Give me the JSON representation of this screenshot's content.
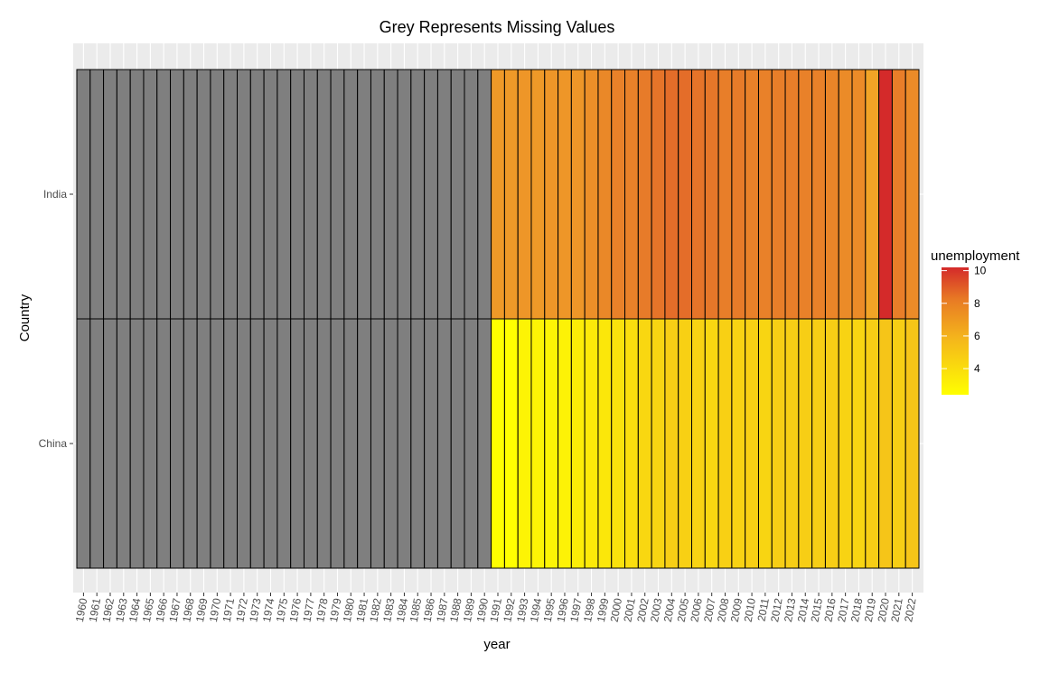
{
  "chart_data": {
    "type": "heatmap",
    "title": "Grey Represents Missing Values",
    "xlabel": "year",
    "ylabel": "Country",
    "years": [
      "1960",
      "1961",
      "1962",
      "1963",
      "1964",
      "1965",
      "1966",
      "1967",
      "1968",
      "1969",
      "1970",
      "1971",
      "1972",
      "1973",
      "1974",
      "1975",
      "1976",
      "1977",
      "1978",
      "1979",
      "1980",
      "1981",
      "1982",
      "1983",
      "1984",
      "1985",
      "1986",
      "1987",
      "1988",
      "1989",
      "1990",
      "1991",
      "1992",
      "1993",
      "1994",
      "1995",
      "1996",
      "1997",
      "1998",
      "1999",
      "2000",
      "2001",
      "2002",
      "2003",
      "2004",
      "2005",
      "2006",
      "2007",
      "2008",
      "2009",
      "2010",
      "2011",
      "2012",
      "2013",
      "2014",
      "2015",
      "2016",
      "2017",
      "2018",
      "2019",
      "2020",
      "2021",
      "2022"
    ],
    "countries": [
      "India",
      "China"
    ],
    "series": [
      {
        "name": "India",
        "values": [
          null,
          null,
          null,
          null,
          null,
          null,
          null,
          null,
          null,
          null,
          null,
          null,
          null,
          null,
          null,
          null,
          null,
          null,
          null,
          null,
          null,
          null,
          null,
          null,
          null,
          null,
          null,
          null,
          null,
          null,
          null,
          6.9,
          6.9,
          7.0,
          6.9,
          7.0,
          7.0,
          7.0,
          7.2,
          7.4,
          7.6,
          7.6,
          7.8,
          8.0,
          8.2,
          8.2,
          8.0,
          7.9,
          7.7,
          7.8,
          7.6,
          7.6,
          7.7,
          7.7,
          7.6,
          7.6,
          7.5,
          7.3,
          7.3,
          6.5,
          10.2,
          7.7,
          7.3
        ]
      },
      {
        "name": "China",
        "values": [
          null,
          null,
          null,
          null,
          null,
          null,
          null,
          null,
          null,
          null,
          null,
          null,
          null,
          null,
          null,
          null,
          null,
          null,
          null,
          null,
          null,
          null,
          null,
          null,
          null,
          null,
          null,
          null,
          null,
          null,
          null,
          2.4,
          2.4,
          2.9,
          2.9,
          2.9,
          3.0,
          3.2,
          3.4,
          3.5,
          3.7,
          3.9,
          4.2,
          4.3,
          4.6,
          4.5,
          4.4,
          4.2,
          4.5,
          4.4,
          4.5,
          4.3,
          4.6,
          4.6,
          4.6,
          4.6,
          4.6,
          4.4,
          4.3,
          4.6,
          5.0,
          4.6,
          5.0
        ]
      }
    ],
    "missing_color": "#7f7f7f",
    "panel_background": "#ebebeb",
    "cell_border": "#000000",
    "color_scale": {
      "low": "#ffff00",
      "mid": "#f0a028",
      "high": "#d42a2a",
      "min": 2.4,
      "max": 10.2
    },
    "legend": {
      "title": "unemployment",
      "breaks": [
        "10",
        "8",
        "6",
        "4"
      ],
      "placement": "right"
    },
    "grid": true
  }
}
